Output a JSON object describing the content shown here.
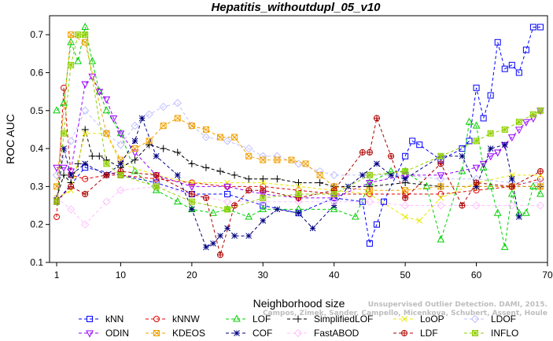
{
  "chart_data": {
    "type": "line",
    "title": "Hepatitis_withoutdupl_05_v10",
    "xlabel": "Neighborhood size",
    "ylabel": "ROC AUC",
    "xlim": [
      0,
      70
    ],
    "ylim": [
      0.1,
      0.75
    ],
    "x_ticks": [
      1,
      10,
      20,
      30,
      40,
      50,
      60,
      70
    ],
    "y_ticks": [
      0.1,
      0.2,
      0.3,
      0.4,
      0.5,
      0.6,
      0.7
    ],
    "legend_position": "bottom",
    "legend_rows": [
      [
        "kNN",
        "kNNW",
        "LOF",
        "SimplifiedLOF",
        "LoOP",
        "LDOF"
      ],
      [
        "ODIN",
        "KDEOS",
        "COF",
        "FastABOD",
        "LDF",
        "INFLO"
      ]
    ],
    "watermark_lines": [
      "Unsupervised Outlier Detection. DAMI, 2015.",
      "Campos, Zimek, Sander, Campello, Micenkova, Schubert, Assent, Houle"
    ],
    "series": [
      {
        "name": "kNN",
        "color": "#0000ff",
        "marker": "square",
        "x": [
          1,
          5,
          10,
          15,
          20,
          25,
          30,
          35,
          40,
          44,
          45,
          46,
          47,
          50,
          51,
          52,
          55,
          58,
          59,
          60,
          61,
          62,
          63,
          64,
          65,
          66,
          67,
          68,
          69
        ],
        "y": [
          0.26,
          0.35,
          0.33,
          0.31,
          0.28,
          0.28,
          0.25,
          0.23,
          0.27,
          0.26,
          0.15,
          0.2,
          0.26,
          0.38,
          0.42,
          0.41,
          0.37,
          0.4,
          0.42,
          0.56,
          0.48,
          0.54,
          0.68,
          0.61,
          0.62,
          0.6,
          0.66,
          0.72,
          0.72
        ]
      },
      {
        "name": "kNNW",
        "color": "#e00000",
        "marker": "circle",
        "x": [
          1,
          2,
          3,
          5,
          8,
          10,
          15,
          20,
          25,
          30,
          35,
          40,
          45,
          50,
          55,
          60,
          65,
          69
        ],
        "y": [
          0.22,
          0.56,
          0.33,
          0.32,
          0.33,
          0.33,
          0.32,
          0.31,
          0.3,
          0.3,
          0.29,
          0.28,
          0.28,
          0.28,
          0.28,
          0.29,
          0.3,
          0.32
        ]
      },
      {
        "name": "LOF",
        "color": "#00d000",
        "marker": "triangle",
        "x": [
          1,
          2,
          3,
          4,
          5,
          6,
          7,
          8,
          10,
          12,
          15,
          18,
          20,
          23,
          25,
          28,
          30,
          35,
          40,
          43,
          45,
          48,
          50,
          53,
          55,
          58,
          59,
          60,
          61,
          62,
          63,
          64,
          65,
          66,
          67,
          68,
          69
        ],
        "y": [
          0.5,
          0.52,
          0.68,
          0.63,
          0.72,
          0.63,
          0.55,
          0.5,
          0.44,
          0.34,
          0.29,
          0.26,
          0.24,
          0.23,
          0.24,
          0.22,
          0.24,
          0.24,
          0.24,
          0.22,
          0.31,
          0.34,
          0.34,
          0.3,
          0.16,
          0.34,
          0.47,
          0.46,
          0.35,
          0.3,
          0.23,
          0.14,
          0.28,
          0.23,
          0.23,
          0.3,
          0.28
        ]
      },
      {
        "name": "SimplifiedLOF",
        "color": "#000000",
        "marker": "plus",
        "x": [
          1,
          2,
          3,
          4,
          5,
          6,
          7,
          8,
          10,
          12,
          14,
          16,
          18,
          20,
          22,
          24,
          26,
          28,
          30,
          32,
          35,
          38,
          40,
          45,
          50,
          55,
          60,
          65,
          69
        ],
        "y": [
          0.27,
          0.33,
          0.31,
          0.36,
          0.45,
          0.38,
          0.38,
          0.37,
          0.35,
          0.37,
          0.41,
          0.4,
          0.39,
          0.36,
          0.35,
          0.34,
          0.33,
          0.32,
          0.32,
          0.32,
          0.31,
          0.31,
          0.3,
          0.3,
          0.31,
          0.3,
          0.3,
          0.3,
          0.3
        ]
      },
      {
        "name": "LoOP",
        "color": "#e8e800",
        "marker": "cross",
        "x": [
          1,
          3,
          5,
          8,
          10,
          15,
          20,
          25,
          30,
          35,
          40,
          45,
          50,
          52,
          55,
          60,
          65,
          69
        ],
        "y": [
          0.27,
          0.29,
          0.44,
          0.44,
          0.36,
          0.33,
          0.31,
          0.31,
          0.31,
          0.3,
          0.29,
          0.28,
          0.22,
          0.21,
          0.27,
          0.31,
          0.33,
          0.33
        ]
      },
      {
        "name": "LDOF",
        "color": "#c0c0ff",
        "marker": "diamond",
        "x": [
          1,
          3,
          5,
          8,
          10,
          12,
          14,
          16,
          18,
          20,
          22,
          25,
          28,
          30,
          32,
          35,
          38,
          40,
          45,
          50,
          55,
          60,
          65,
          69
        ],
        "y": [
          0.33,
          0.42,
          0.5,
          0.44,
          0.41,
          0.46,
          0.49,
          0.51,
          0.52,
          0.46,
          0.43,
          0.42,
          0.4,
          0.38,
          0.38,
          0.36,
          0.34,
          0.33,
          0.33,
          0.33,
          0.32,
          0.32,
          0.31,
          0.31
        ]
      },
      {
        "name": "ODIN",
        "color": "#9900ff",
        "marker": "triangle-down",
        "x": [
          1,
          2,
          3,
          5,
          6,
          7,
          8,
          9,
          10,
          12,
          15,
          20,
          25,
          30,
          35,
          40,
          45,
          50,
          55,
          60,
          61,
          62,
          63,
          64,
          65,
          66,
          67,
          68,
          69
        ],
        "y": [
          0.35,
          0.35,
          0.34,
          0.57,
          0.59,
          0.55,
          0.53,
          0.48,
          0.44,
          0.39,
          0.33,
          0.3,
          0.3,
          0.28,
          0.27,
          0.27,
          0.31,
          0.33,
          0.33,
          0.35,
          0.36,
          0.38,
          0.39,
          0.41,
          0.43,
          0.45,
          0.47,
          0.48,
          0.5
        ]
      },
      {
        "name": "KDEOS",
        "color": "#f0a000",
        "marker": "square-x",
        "x": [
          1,
          3,
          5,
          8,
          10,
          12,
          14,
          16,
          18,
          20,
          22,
          24,
          26,
          28,
          30,
          32,
          34,
          36,
          38,
          40,
          45,
          50,
          55,
          60,
          65,
          69
        ],
        "y": [
          0.3,
          0.7,
          0.68,
          0.44,
          0.37,
          0.4,
          0.42,
          0.46,
          0.48,
          0.46,
          0.45,
          0.43,
          0.43,
          0.38,
          0.37,
          0.37,
          0.37,
          0.36,
          0.33,
          0.3,
          0.29,
          0.29,
          0.3,
          0.3,
          0.3,
          0.3
        ]
      },
      {
        "name": "COF",
        "color": "#000080",
        "marker": "star",
        "x": [
          1,
          2,
          3,
          5,
          8,
          10,
          12,
          13,
          15,
          18,
          20,
          22,
          23,
          24,
          25,
          26,
          28,
          30,
          32,
          35,
          37,
          40,
          42,
          44,
          46,
          48,
          50,
          55,
          58,
          60,
          62,
          64,
          65,
          66
        ],
        "y": [
          0.26,
          0.4,
          0.33,
          0.36,
          0.33,
          0.36,
          0.42,
          0.48,
          0.38,
          0.33,
          0.24,
          0.14,
          0.15,
          0.17,
          0.19,
          0.17,
          0.17,
          0.21,
          0.24,
          0.23,
          0.19,
          0.25,
          0.3,
          0.33,
          0.36,
          0.33,
          0.32,
          0.38,
          0.38,
          0.3,
          0.4,
          0.41,
          0.32,
          0.22
        ]
      },
      {
        "name": "FastABOD",
        "color": "#ffc0ff",
        "marker": "diamond",
        "x": [
          1,
          3,
          5,
          8,
          10,
          15,
          20,
          25,
          30,
          35,
          40,
          45,
          50,
          55,
          60,
          65,
          69
        ],
        "y": [
          0.27,
          0.24,
          0.2,
          0.26,
          0.29,
          0.3,
          0.28,
          0.26,
          0.26,
          0.26,
          0.26,
          0.26,
          0.25,
          0.25,
          0.25,
          0.25,
          0.25
        ]
      },
      {
        "name": "LDF",
        "color": "#b00000",
        "marker": "circle-plus",
        "x": [
          1,
          3,
          5,
          8,
          10,
          15,
          20,
          22,
          24,
          26,
          28,
          30,
          35,
          40,
          44,
          45,
          46,
          48,
          50,
          55,
          58,
          60,
          65,
          69
        ],
        "y": [
          0.26,
          0.3,
          0.28,
          0.33,
          0.34,
          0.33,
          0.28,
          0.27,
          0.12,
          0.25,
          0.29,
          0.29,
          0.27,
          0.29,
          0.39,
          0.39,
          0.48,
          0.38,
          0.27,
          0.36,
          0.25,
          0.31,
          0.3,
          0.34
        ]
      },
      {
        "name": "INFLO",
        "color": "#90d000",
        "marker": "square-star",
        "x": [
          1,
          2,
          3,
          4,
          5,
          8,
          10,
          15,
          20,
          25,
          30,
          35,
          40,
          45,
          50,
          55,
          60,
          62,
          64,
          66,
          68,
          69
        ],
        "y": [
          0.26,
          0.44,
          0.62,
          0.7,
          0.7,
          0.36,
          0.33,
          0.3,
          0.26,
          0.24,
          0.27,
          0.28,
          0.28,
          0.33,
          0.34,
          0.38,
          0.42,
          0.44,
          0.45,
          0.47,
          0.49,
          0.5
        ]
      }
    ]
  }
}
